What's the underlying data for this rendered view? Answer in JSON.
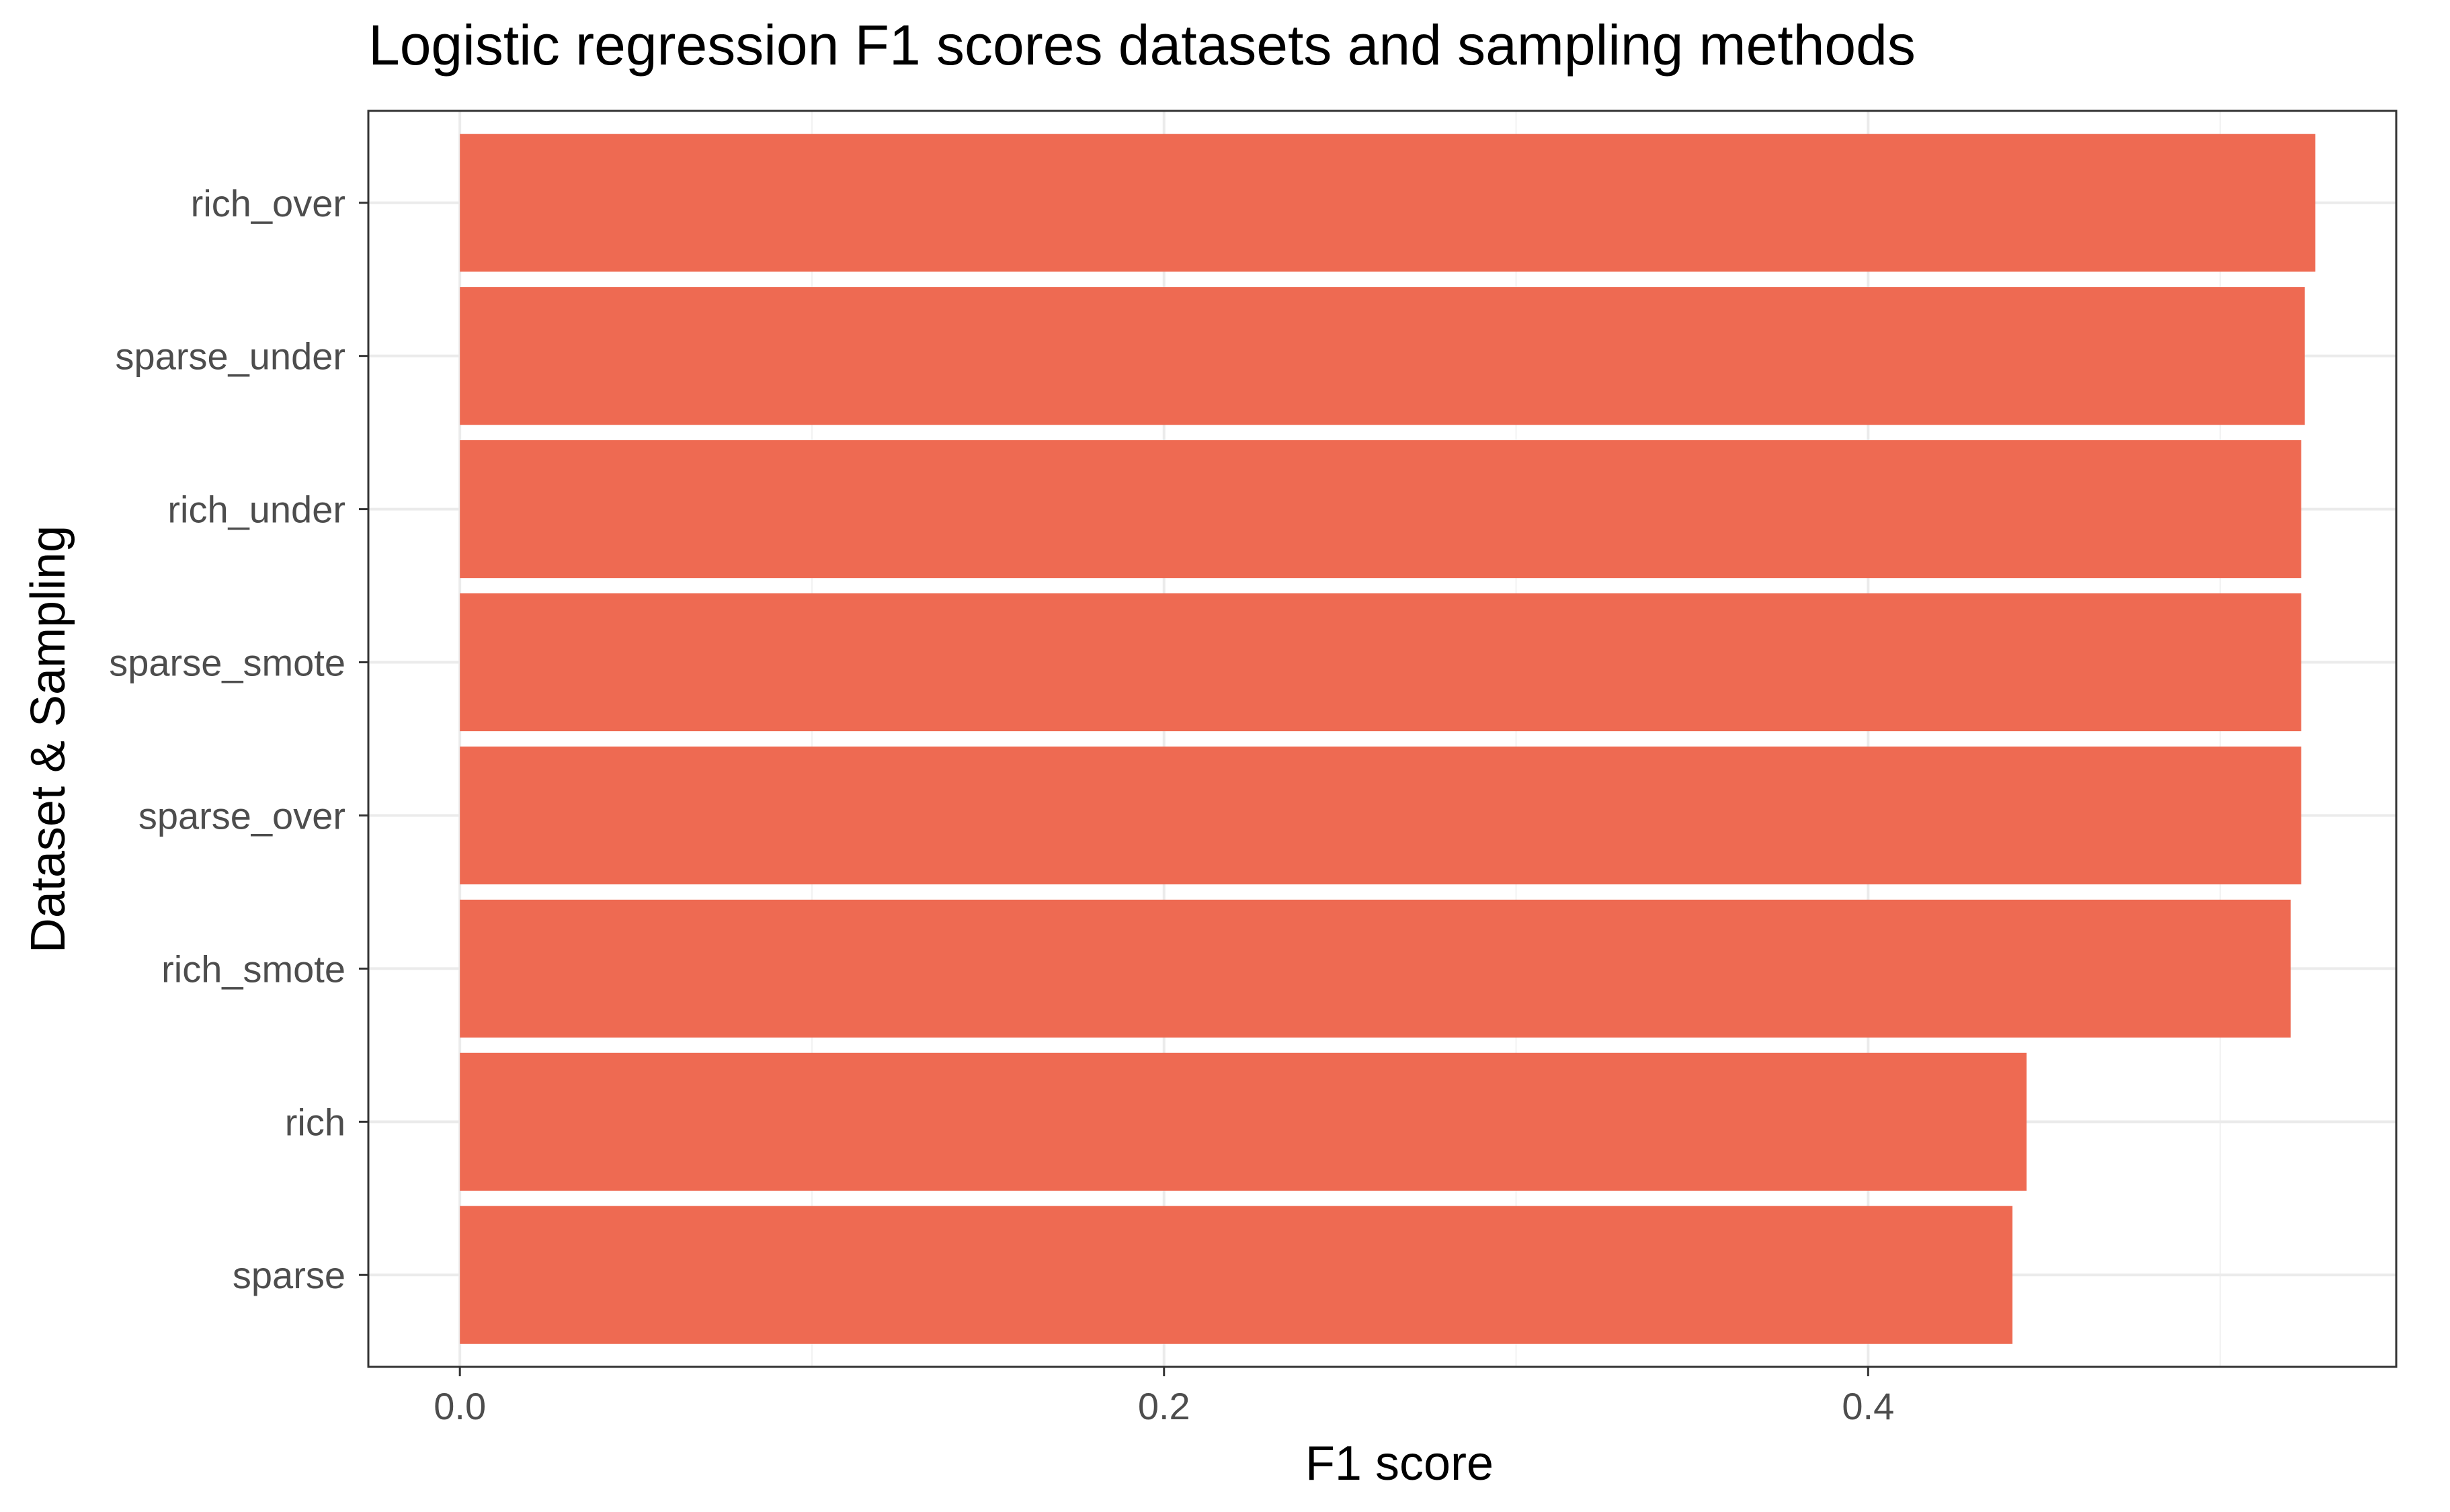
{
  "chart_data": {
    "type": "bar",
    "orientation": "horizontal",
    "title": "Logistic regression F1 scores datasets and sampling methods",
    "xlabel": "F1 score",
    "ylabel": "Dataset & Sampling",
    "categories": [
      "rich_over",
      "sparse_under",
      "rich_under",
      "sparse_smote",
      "sparse_over",
      "rich_smote",
      "rich",
      "sparse"
    ],
    "values": [
      0.527,
      0.524,
      0.523,
      0.523,
      0.523,
      0.52,
      0.445,
      0.441
    ],
    "xlim": [
      -0.026,
      0.55
    ],
    "xticks": [
      "0.0",
      "0.2",
      "0.4"
    ],
    "bar_color": "#EE6A52",
    "grid": true,
    "theme": "bw"
  }
}
